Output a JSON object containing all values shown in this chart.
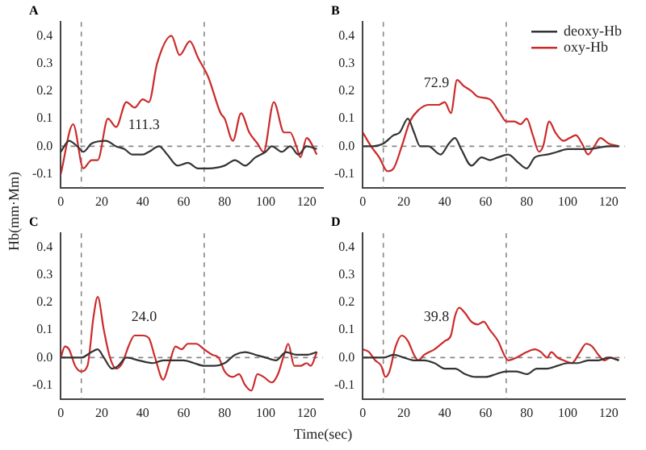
{
  "chart_data": [
    {
      "type": "line",
      "title": "A",
      "ylabel": "Hb(mm·Mm)",
      "xlabel": "Time(sec)",
      "xlim": [
        0,
        128
      ],
      "xticks": [
        0,
        20,
        40,
        60,
        80,
        100,
        120
      ],
      "ylim": [
        -0.15,
        0.45
      ],
      "yticks": [
        {
          "value": -0.1,
          "label": "-0.1"
        },
        {
          "value": 0,
          "label": "0.0"
        },
        {
          "value": 0.1,
          "label": "0.1"
        },
        {
          "value": 0.2,
          "label": "0.2"
        },
        {
          "value": 0.3,
          "label": "0.3"
        },
        {
          "value": 0.4,
          "label": "0.4"
        }
      ],
      "marker": "none",
      "legend": false,
      "annotations": [
        "111.3"
      ],
      "ref_lines": [
        {
          "axis": "x",
          "value": 10,
          "color": "#888888",
          "line_style": "dashed"
        },
        {
          "axis": "x",
          "value": 70,
          "color": "#888888",
          "line_style": "dashed"
        },
        {
          "axis": "y",
          "value": 0,
          "color": "#888888",
          "line_style": "dashed"
        }
      ],
      "series": [
        {
          "color": "#333333",
          "x": [
            0,
            4,
            8,
            11,
            15,
            22,
            27,
            31,
            35,
            40,
            43,
            48,
            52,
            57,
            62,
            67,
            72,
            80,
            85,
            90,
            95,
            100,
            103,
            108,
            112,
            116,
            120,
            125
          ],
          "values": [
            -0.02,
            0.02,
            0.0,
            -0.02,
            0.01,
            0.02,
            0.0,
            -0.01,
            -0.03,
            -0.03,
            -0.02,
            0.0,
            -0.03,
            -0.07,
            -0.06,
            -0.08,
            -0.08,
            -0.07,
            -0.05,
            -0.07,
            -0.04,
            -0.02,
            0.0,
            -0.02,
            0.0,
            -0.03,
            0.0,
            -0.01
          ]
        },
        {
          "color": "#cc2a2a",
          "x": [
            0,
            6,
            11,
            15,
            18,
            23,
            27,
            32,
            36,
            40,
            43,
            47,
            54,
            58,
            63,
            67,
            72,
            78,
            80,
            84,
            88,
            92,
            96,
            99,
            104,
            109,
            112,
            115,
            117,
            120,
            125
          ],
          "values": [
            -0.1,
            0.08,
            -0.08,
            -0.05,
            -0.05,
            0.1,
            0.07,
            0.16,
            0.14,
            0.17,
            0.16,
            0.3,
            0.4,
            0.33,
            0.38,
            0.32,
            0.25,
            0.12,
            0.1,
            0.02,
            0.12,
            0.05,
            0.01,
            -0.02,
            0.16,
            0.05,
            0.05,
            0.0,
            -0.04,
            0.03,
            -0.03
          ]
        }
      ]
    },
    {
      "type": "line",
      "title": "B",
      "xlim": [
        0,
        128
      ],
      "xticks": [
        0,
        20,
        40,
        60,
        80,
        100,
        120
      ],
      "ylim": [
        -0.15,
        0.45
      ],
      "yticks": [
        {
          "value": -0.1,
          "label": "-0.1"
        },
        {
          "value": 0,
          "label": "0.0"
        },
        {
          "value": 0.1,
          "label": "0.1"
        },
        {
          "value": 0.2,
          "label": "0.2"
        },
        {
          "value": 0.3,
          "label": "0.3"
        },
        {
          "value": 0.4,
          "label": "0.4"
        }
      ],
      "marker": "none",
      "legend": "top right",
      "annotations": [
        "72.9"
      ],
      "ref_lines": [
        {
          "axis": "x",
          "value": 10,
          "color": "#888888",
          "line_style": "dashed"
        },
        {
          "axis": "x",
          "value": 70,
          "color": "#888888",
          "line_style": "dashed"
        },
        {
          "axis": "y",
          "value": 0,
          "color": "#888888",
          "line_style": "dashed"
        }
      ],
      "series": [
        {
          "name": "deoxy-Hb",
          "color": "#333333",
          "x": [
            0,
            5,
            10,
            15,
            18,
            22,
            25,
            28,
            32,
            38,
            42,
            45,
            48,
            53,
            58,
            62,
            66,
            71,
            76,
            80,
            84,
            90,
            95,
            100,
            110,
            120,
            125
          ],
          "values": [
            0.0,
            0.0,
            0.01,
            0.04,
            0.05,
            0.1,
            0.05,
            0.0,
            0.0,
            -0.03,
            0.01,
            0.03,
            -0.01,
            -0.07,
            -0.04,
            -0.05,
            -0.04,
            -0.03,
            -0.06,
            -0.08,
            -0.04,
            -0.03,
            -0.02,
            -0.01,
            -0.01,
            0.0,
            0.0
          ]
        },
        {
          "name": "oxy-Hb",
          "color": "#cc2a2a",
          "x": [
            0,
            4,
            8,
            12,
            15,
            19,
            23,
            27,
            32,
            37,
            40,
            43,
            46,
            49,
            53,
            56,
            62,
            67,
            70,
            74,
            77,
            80,
            83,
            86,
            88,
            91,
            94,
            98,
            101,
            104,
            107,
            110,
            113,
            116,
            120,
            125
          ],
          "values": [
            0.05,
            0.0,
            -0.04,
            -0.09,
            -0.08,
            0.0,
            0.09,
            0.13,
            0.15,
            0.15,
            0.16,
            0.12,
            0.24,
            0.22,
            0.2,
            0.18,
            0.17,
            0.12,
            0.09,
            0.09,
            0.08,
            0.1,
            0.04,
            -0.02,
            0.0,
            0.09,
            0.05,
            0.02,
            0.03,
            0.04,
            0.01,
            -0.03,
            0.0,
            0.03,
            0.01,
            0.0
          ]
        }
      ]
    },
    {
      "type": "line",
      "title": "C",
      "xlim": [
        0,
        128
      ],
      "xticks": [
        0,
        20,
        40,
        60,
        80,
        100,
        120
      ],
      "ylim": [
        -0.15,
        0.45
      ],
      "yticks": [
        {
          "value": -0.1,
          "label": "-0.1"
        },
        {
          "value": 0,
          "label": "0.0"
        },
        {
          "value": 0.1,
          "label": "0.1"
        },
        {
          "value": 0.2,
          "label": "0.2"
        },
        {
          "value": 0.3,
          "label": "0.3"
        },
        {
          "value": 0.4,
          "label": "0.4"
        }
      ],
      "marker": "none",
      "legend": false,
      "annotations": [
        "24.0"
      ],
      "ref_lines": [
        {
          "axis": "x",
          "value": 10,
          "color": "#888888",
          "line_style": "dashed"
        },
        {
          "axis": "x",
          "value": 70,
          "color": "#888888",
          "line_style": "dashed"
        },
        {
          "axis": "y",
          "value": 0,
          "color": "#888888",
          "line_style": "dashed"
        }
      ],
      "series": [
        {
          "color": "#333333",
          "x": [
            0,
            5,
            10,
            15,
            18,
            21,
            25,
            28,
            32,
            38,
            45,
            50,
            60,
            65,
            70,
            75,
            80,
            85,
            90,
            95,
            100,
            105,
            110,
            115,
            120,
            125
          ],
          "values": [
            0.0,
            0.0,
            0.0,
            0.02,
            0.03,
            0.0,
            -0.04,
            -0.03,
            0.0,
            -0.01,
            -0.02,
            -0.01,
            -0.01,
            -0.02,
            -0.03,
            -0.03,
            -0.02,
            0.01,
            0.02,
            0.01,
            0.0,
            -0.01,
            0.02,
            0.01,
            0.01,
            0.02
          ]
        },
        {
          "color": "#cc2a2a",
          "x": [
            0,
            2,
            4,
            7,
            10,
            13,
            16,
            18,
            21,
            24,
            27,
            30,
            33,
            36,
            40,
            43,
            46,
            50,
            53,
            56,
            59,
            62,
            66,
            70,
            74,
            77,
            80,
            84,
            87,
            90,
            93,
            96,
            99,
            103,
            106,
            109,
            111,
            114,
            117,
            120,
            122,
            125
          ],
          "values": [
            0.0,
            0.04,
            0.03,
            -0.03,
            -0.05,
            -0.03,
            0.15,
            0.22,
            0.1,
            0.0,
            -0.04,
            -0.02,
            0.04,
            0.08,
            0.08,
            0.07,
            0.0,
            -0.08,
            -0.02,
            0.04,
            0.03,
            0.05,
            0.05,
            0.03,
            0.01,
            0.0,
            -0.05,
            -0.07,
            -0.06,
            -0.1,
            -0.12,
            -0.06,
            -0.07,
            -0.09,
            -0.06,
            0.01,
            0.05,
            -0.03,
            -0.03,
            -0.02,
            -0.03,
            0.02
          ]
        }
      ]
    },
    {
      "type": "line",
      "title": "D",
      "xlim": [
        0,
        128
      ],
      "xticks": [
        0,
        20,
        40,
        60,
        80,
        100,
        120
      ],
      "ylim": [
        -0.15,
        0.45
      ],
      "yticks": [
        {
          "value": -0.1,
          "label": "-0.1"
        },
        {
          "value": 0,
          "label": "0.0"
        },
        {
          "value": 0.1,
          "label": "0.1"
        },
        {
          "value": 0.2,
          "label": "0.2"
        },
        {
          "value": 0.3,
          "label": "0.3"
        },
        {
          "value": 0.4,
          "label": "0.4"
        }
      ],
      "marker": "none",
      "legend": false,
      "annotations": [
        "39.8"
      ],
      "ref_lines": [
        {
          "axis": "x",
          "value": 10,
          "color": "#888888",
          "line_style": "dashed"
        },
        {
          "axis": "x",
          "value": 70,
          "color": "#888888",
          "line_style": "dashed"
        },
        {
          "axis": "y",
          "value": 0,
          "color": "#888888",
          "line_style": "dashed"
        }
      ],
      "series": [
        {
          "color": "#333333",
          "x": [
            0,
            5,
            10,
            15,
            20,
            25,
            30,
            35,
            40,
            45,
            50,
            55,
            60,
            65,
            70,
            75,
            80,
            85,
            90,
            95,
            100,
            105,
            110,
            115,
            120,
            125
          ],
          "values": [
            0.0,
            0.0,
            0.0,
            0.01,
            0.0,
            -0.01,
            -0.01,
            -0.02,
            -0.04,
            -0.04,
            -0.06,
            -0.07,
            -0.07,
            -0.06,
            -0.05,
            -0.05,
            -0.06,
            -0.04,
            -0.04,
            -0.03,
            -0.02,
            -0.02,
            -0.01,
            -0.01,
            0.0,
            -0.01
          ]
        },
        {
          "color": "#cc2a2a",
          "x": [
            0,
            3,
            6,
            9,
            11,
            13,
            16,
            19,
            22,
            25,
            27,
            30,
            35,
            40,
            43,
            45,
            47,
            50,
            53,
            56,
            59,
            62,
            66,
            69,
            71,
            75,
            80,
            84,
            87,
            90,
            92,
            95,
            98,
            102,
            106,
            109,
            112,
            115,
            118,
            121,
            125
          ],
          "values": [
            0.03,
            0.02,
            -0.01,
            -0.03,
            -0.07,
            -0.05,
            0.04,
            0.08,
            0.06,
            0.01,
            -0.01,
            0.01,
            0.03,
            0.06,
            0.08,
            0.15,
            0.18,
            0.16,
            0.13,
            0.12,
            0.13,
            0.1,
            0.06,
            0.01,
            -0.01,
            0.0,
            0.02,
            0.03,
            0.02,
            0.0,
            0.02,
            0.0,
            -0.01,
            -0.02,
            0.02,
            0.05,
            0.04,
            0.01,
            -0.01,
            0.0,
            -0.01
          ]
        }
      ]
    }
  ]
}
